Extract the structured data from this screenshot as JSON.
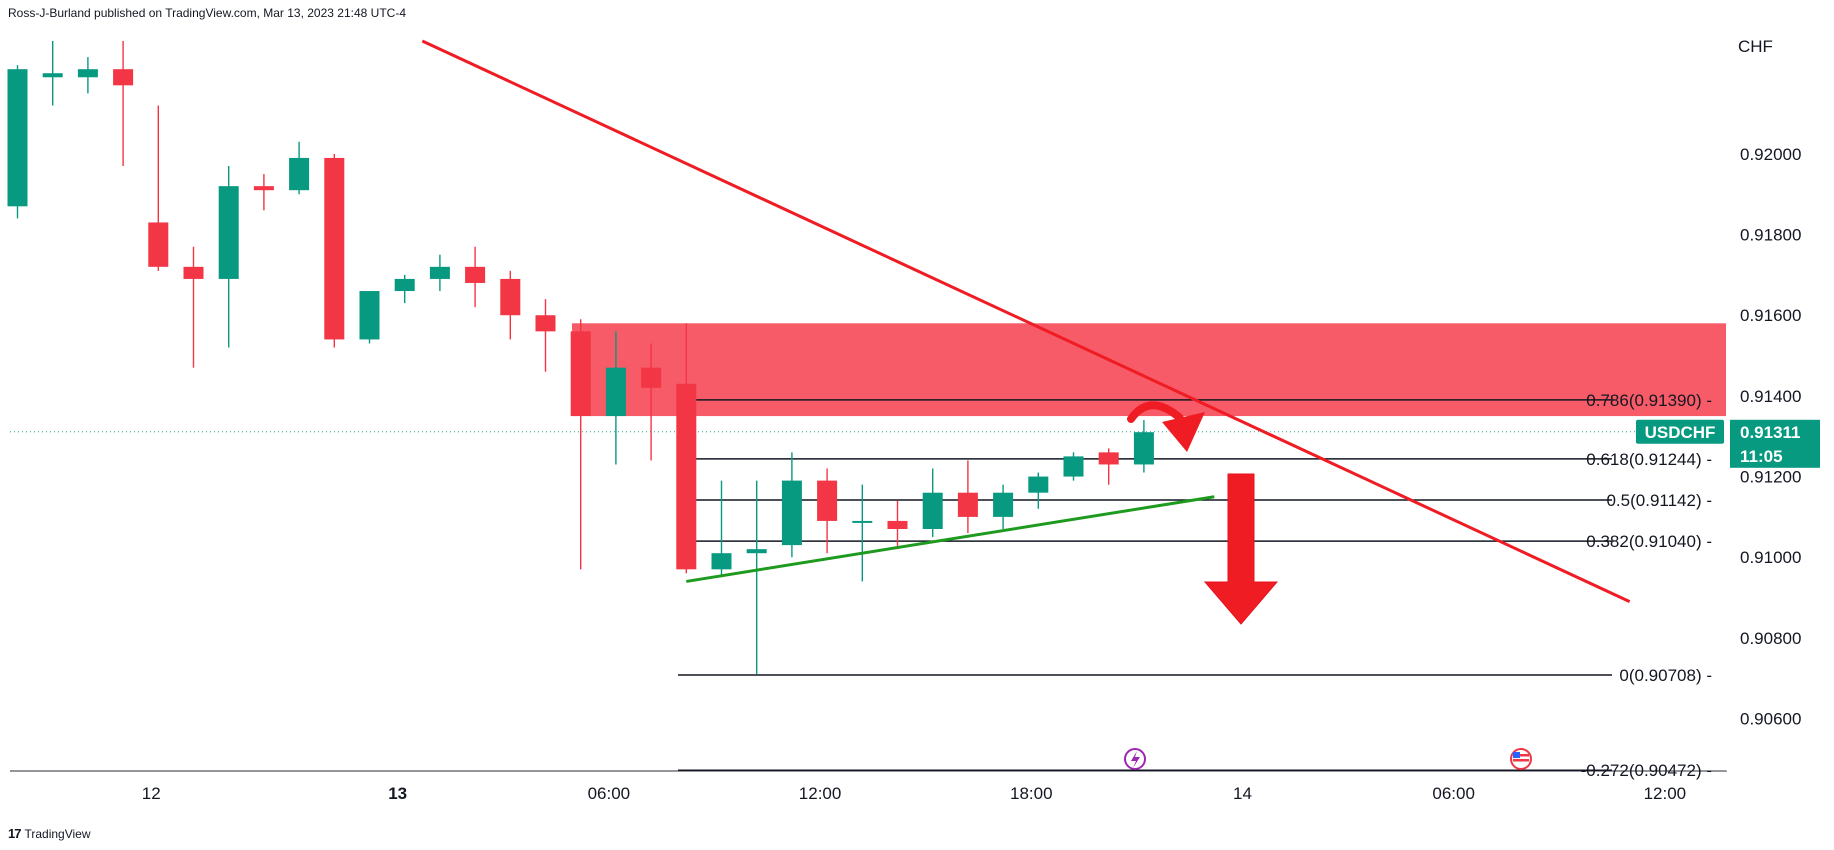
{
  "header": {
    "published": "Ross-J-Burland published on TradingView.com, Mar 13, 2023 21:48 UTC-4"
  },
  "footer": {
    "brand": "TradingView",
    "logo_text": "17"
  },
  "chart_data": {
    "type": "candlestick",
    "symbol": "USDCHF",
    "currency": "CHF",
    "last_price": "0.91311",
    "countdown": "11:05",
    "y_ticks": [
      "0.92000",
      "0.91800",
      "0.91600",
      "0.91400",
      "0.91200",
      "0.91000",
      "0.90800",
      "0.90600"
    ],
    "y_tick_values": [
      0.92,
      0.918,
      0.916,
      0.914,
      0.912,
      0.91,
      0.908,
      0.906
    ],
    "ylim": [
      0.9046,
      0.923
    ],
    "x_ticks": [
      {
        "label": "12",
        "bar": 3.8,
        "bold": false
      },
      {
        "label": "13",
        "bar": 10.8,
        "bold": true
      },
      {
        "label": "06:00",
        "bar": 16.8,
        "bold": false
      },
      {
        "label": "12:00",
        "bar": 22.8,
        "bold": false
      },
      {
        "label": "18:00",
        "bar": 28.8,
        "bold": false
      },
      {
        "label": "14",
        "bar": 34.8,
        "bold": false
      },
      {
        "label": "06:00",
        "bar": 40.8,
        "bold": false
      },
      {
        "label": "12:00",
        "bar": 46.8,
        "bold": false
      }
    ],
    "candles": [
      {
        "o": 0.9187,
        "h": 0.9222,
        "l": 0.9184,
        "c": 0.9221
      },
      {
        "o": 0.9219,
        "h": 0.9228,
        "l": 0.9212,
        "c": 0.922
      },
      {
        "o": 0.9219,
        "h": 0.9224,
        "l": 0.9215,
        "c": 0.9221
      },
      {
        "o": 0.9221,
        "h": 0.9228,
        "l": 0.9197,
        "c": 0.9217
      },
      {
        "o": 0.9183,
        "h": 0.9212,
        "l": 0.9171,
        "c": 0.9172
      },
      {
        "o": 0.9172,
        "h": 0.9177,
        "l": 0.9147,
        "c": 0.9169
      },
      {
        "o": 0.9169,
        "h": 0.9197,
        "l": 0.9152,
        "c": 0.9192
      },
      {
        "o": 0.9192,
        "h": 0.9195,
        "l": 0.9186,
        "c": 0.9191
      },
      {
        "o": 0.9191,
        "h": 0.9203,
        "l": 0.919,
        "c": 0.9199
      },
      {
        "o": 0.9199,
        "h": 0.92,
        "l": 0.9152,
        "c": 0.9154
      },
      {
        "o": 0.9154,
        "h": 0.9166,
        "l": 0.9153,
        "c": 0.9166
      },
      {
        "o": 0.9166,
        "h": 0.917,
        "l": 0.9163,
        "c": 0.9169
      },
      {
        "o": 0.9169,
        "h": 0.9175,
        "l": 0.9166,
        "c": 0.9172
      },
      {
        "o": 0.9172,
        "h": 0.9177,
        "l": 0.9162,
        "c": 0.9168
      },
      {
        "o": 0.9169,
        "h": 0.9171,
        "l": 0.9154,
        "c": 0.916
      },
      {
        "o": 0.916,
        "h": 0.9164,
        "l": 0.9146,
        "c": 0.9156
      },
      {
        "o": 0.9156,
        "h": 0.9159,
        "l": 0.9097,
        "c": 0.9135
      },
      {
        "o": 0.9135,
        "h": 0.9156,
        "l": 0.9123,
        "c": 0.9147
      },
      {
        "o": 0.9147,
        "h": 0.9153,
        "l": 0.9124,
        "c": 0.9142
      },
      {
        "o": 0.9143,
        "h": 0.9158,
        "l": 0.9096,
        "c": 0.9097
      },
      {
        "o": 0.9097,
        "h": 0.9119,
        "l": 0.9095,
        "c": 0.9101
      },
      {
        "o": 0.9101,
        "h": 0.9119,
        "l": 0.9071,
        "c": 0.9102
      },
      {
        "o": 0.9103,
        "h": 0.9126,
        "l": 0.91,
        "c": 0.9119
      },
      {
        "o": 0.9119,
        "h": 0.9122,
        "l": 0.9101,
        "c": 0.9109
      },
      {
        "o": 0.9109,
        "h": 0.9118,
        "l": 0.9094,
        "c": 0.9109
      },
      {
        "o": 0.9109,
        "h": 0.9114,
        "l": 0.9102,
        "c": 0.9107
      },
      {
        "o": 0.9107,
        "h": 0.9122,
        "l": 0.9105,
        "c": 0.9116
      },
      {
        "o": 0.9116,
        "h": 0.9124,
        "l": 0.9106,
        "c": 0.911
      },
      {
        "o": 0.911,
        "h": 0.9118,
        "l": 0.9107,
        "c": 0.9116
      },
      {
        "o": 0.9116,
        "h": 0.9121,
        "l": 0.9112,
        "c": 0.912
      },
      {
        "o": 0.912,
        "h": 0.9126,
        "l": 0.9119,
        "c": 0.9125
      },
      {
        "o": 0.9126,
        "h": 0.9127,
        "l": 0.9118,
        "c": 0.9123
      },
      {
        "o": 0.9123,
        "h": 0.9134,
        "l": 0.9121,
        "c": 0.9131
      }
    ],
    "fib_levels": [
      {
        "label": "0.786(0.91390)",
        "value": 0.9139
      },
      {
        "label": "0.618(0.91244)",
        "value": 0.91244
      },
      {
        "label": "0.5(0.91142)",
        "value": 0.91142
      },
      {
        "label": "0.382(0.91040)",
        "value": 0.9104
      },
      {
        "label": "0(0.90708)",
        "value": 0.90708
      },
      {
        "label": "-0.272(0.90472)",
        "value": 0.90472
      }
    ],
    "resistance_zone": {
      "top": 0.9158,
      "bottom": 0.9135
    },
    "downtrend_line": {
      "from": {
        "bar": 11.5,
        "price": 0.9228
      },
      "to": {
        "bar": 45.8,
        "price": 0.9089
      }
    },
    "uptrend_line": {
      "from": {
        "bar": 19.0,
        "price": 0.9094
      },
      "to": {
        "bar": 34.0,
        "price": 0.9115
      }
    },
    "colors": {
      "up": "#26a69a",
      "up_body": "#089981",
      "down": "#f23645",
      "zone": "#f7525f",
      "trend_down": "#f01c24",
      "trend_up": "#1e9a1e",
      "badge": "#089981"
    }
  }
}
